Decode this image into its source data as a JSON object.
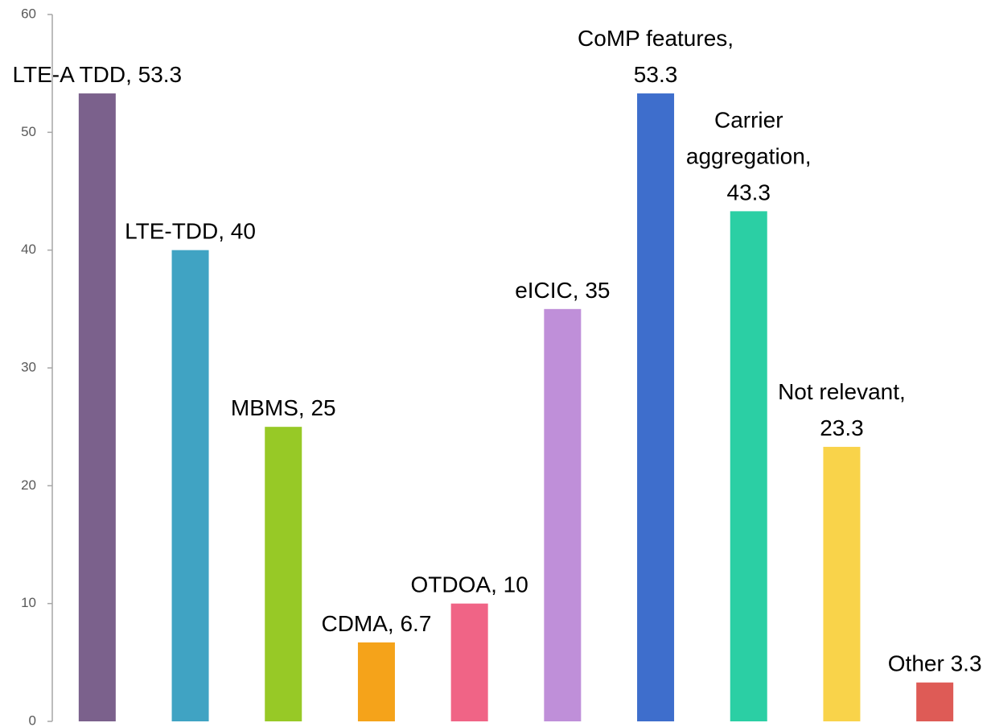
{
  "chart_data": {
    "type": "bar",
    "values": [
      53.3,
      40,
      25,
      6.7,
      10,
      35,
      53.3,
      43.3,
      23.3,
      3.3
    ],
    "value_labels": [
      [
        "LTE-A TDD, 53.3"
      ],
      [
        "LTE-TDD, 40"
      ],
      [
        "MBMS, 25"
      ],
      [
        "CDMA, 6.7"
      ],
      [
        "OTDOA, 10"
      ],
      [
        "eICIC, 35"
      ],
      [
        "CoMP features,",
        "53.3"
      ],
      [
        "Carrier",
        "aggregation,",
        "43.3"
      ],
      [
        "Not relevant,",
        "23.3"
      ],
      [
        "Other 3.3"
      ]
    ],
    "colors": [
      "#7b618c",
      "#40a3c3",
      "#97c926",
      "#f5a31a",
      "#f06486",
      "#bf8fd9",
      "#3e6ecc",
      "#2bcfa4",
      "#f9d34a",
      "#de5b56"
    ],
    "ylim": [
      0,
      60
    ],
    "yticks": [
      0,
      10,
      20,
      30,
      40,
      50,
      60
    ],
    "grid": false
  }
}
